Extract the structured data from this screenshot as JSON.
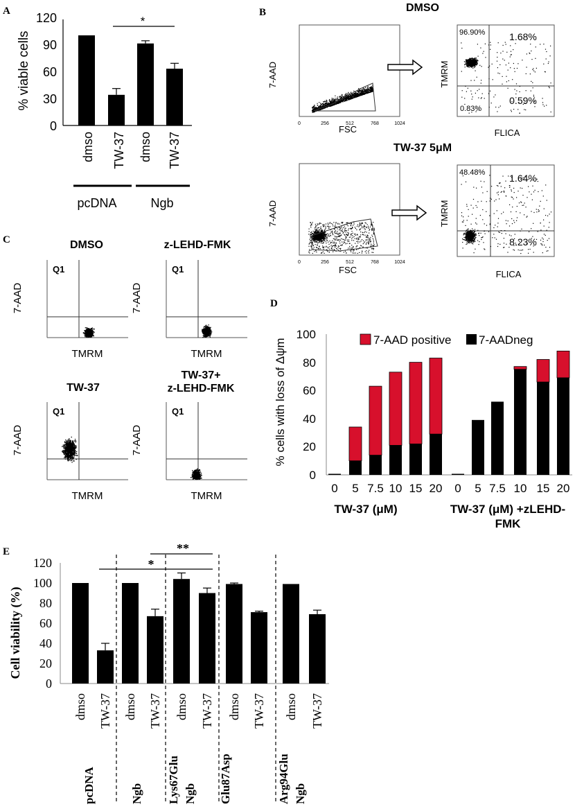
{
  "panels": {
    "A": {
      "letter": "A",
      "ylabel": "% viable cells",
      "y_ticks": [
        "0",
        "30",
        "60",
        "90",
        "120"
      ],
      "categories": [
        "dmso",
        "TW-37",
        "dmso",
        "TW-37"
      ],
      "groups": [
        "pcDNA",
        "Ngb"
      ],
      "sig": "*"
    },
    "B": {
      "letter": "B",
      "conditions": [
        {
          "title": "DMSO",
          "q_ul": "96.90%",
          "q_ur": "1.68%",
          "q_ll": "0.83%",
          "q_lr": "0.59%"
        },
        {
          "title": "TW-37 5μM",
          "q_ul": "48.48%",
          "q_ur": "1.64%",
          "q_ll": "",
          "q_lr": "8.23%"
        }
      ],
      "left_ylabel": "7-AAD",
      "left_xlabel": "FSC",
      "left_xticks": [
        "0",
        "256",
        "512",
        "768",
        "1024"
      ],
      "right_ylabel": "TMRM",
      "right_xlabel": "FLICA"
    },
    "C": {
      "letter": "C",
      "plots": [
        {
          "title": "DMSO",
          "title2": ""
        },
        {
          "title": "z-LEHD-FMK",
          "title2": ""
        },
        {
          "title": "TW-37",
          "title2": ""
        },
        {
          "title": "TW-37+",
          "title2": "z-LEHD-FMK"
        }
      ],
      "quadrant": "Q1",
      "ylabel": "7-AAD",
      "xlabel": "TMRM"
    },
    "D": {
      "letter": "D",
      "legend": [
        "7-AAD positive",
        "7-AADneg"
      ],
      "ylabel": "% cells with loss of Δψm",
      "y_ticks": [
        "0",
        "20",
        "40",
        "60",
        "80",
        "100"
      ],
      "x_ticks": [
        "0",
        "5",
        "7.5",
        "10",
        "15",
        "20",
        "0",
        "5",
        "7.5",
        "10",
        "15",
        "20"
      ],
      "group1": "TW-37 (μM)",
      "group2_line1": "TW-37 (μM) +zLEHD-",
      "group2_line2": "FMK"
    },
    "E": {
      "letter": "E",
      "ylabel": "Cell viability (%)",
      "y_ticks": [
        "0",
        "20",
        "40",
        "60",
        "80",
        "100",
        "120"
      ],
      "categories": [
        "dmso",
        "TW-37",
        "dmso",
        "TW-37",
        "dmso",
        "TW-37",
        "dmso",
        "TW-37",
        "dmso",
        "TW-37"
      ],
      "groups": [
        {
          "line1": "pcDNA",
          "line2": ""
        },
        {
          "line1": "Ngb",
          "line2": ""
        },
        {
          "line1": "Lys67Glu",
          "line2": "Ngb"
        },
        {
          "line1": "Glu87Asp",
          "line2": ""
        },
        {
          "line1": "Arg94Glu",
          "line2": "Ngb"
        }
      ],
      "sig1": "*",
      "sig2": "**"
    }
  },
  "colors": {
    "red": "#d7102c",
    "black": "#000000"
  },
  "chart_data": [
    {
      "type": "bar",
      "panel": "A",
      "ylabel": "% viable cells",
      "ylim": [
        0,
        120
      ],
      "categories": [
        "dmso",
        "TW-37",
        "dmso",
        "TW-37"
      ],
      "values": [
        100,
        34,
        91,
        63
      ],
      "errors": [
        0,
        7,
        3,
        6
      ]
    },
    {
      "type": "bar",
      "panel": "D",
      "stacked": true,
      "ylabel": "% cells with loss of Δψm",
      "ylim": [
        0,
        100
      ],
      "categories": [
        "0",
        "5",
        "7.5",
        "10",
        "15",
        "20",
        "0",
        "5",
        "7.5",
        "10",
        "15",
        "20"
      ],
      "series": [
        {
          "name": "7-AADneg",
          "values": [
            0,
            10,
            14,
            21,
            22,
            29,
            0,
            39,
            52,
            75,
            66,
            69
          ]
        },
        {
          "name": "7-AAD positive",
          "values": [
            0,
            24,
            49,
            52,
            58,
            54,
            0,
            0,
            0,
            2,
            16,
            19
          ]
        }
      ]
    },
    {
      "type": "bar",
      "panel": "E",
      "ylabel": "Cell viability (%)",
      "ylim": [
        0,
        120
      ],
      "categories": [
        "dmso",
        "TW-37",
        "dmso",
        "TW-37",
        "dmso",
        "TW-37",
        "dmso",
        "TW-37",
        "dmso",
        "TW-37"
      ],
      "values": [
        100,
        33,
        100,
        67,
        104,
        90,
        99,
        71,
        99,
        69
      ],
      "errors": [
        0,
        7,
        0,
        7,
        6,
        5,
        1,
        1,
        0,
        4
      ]
    }
  ]
}
